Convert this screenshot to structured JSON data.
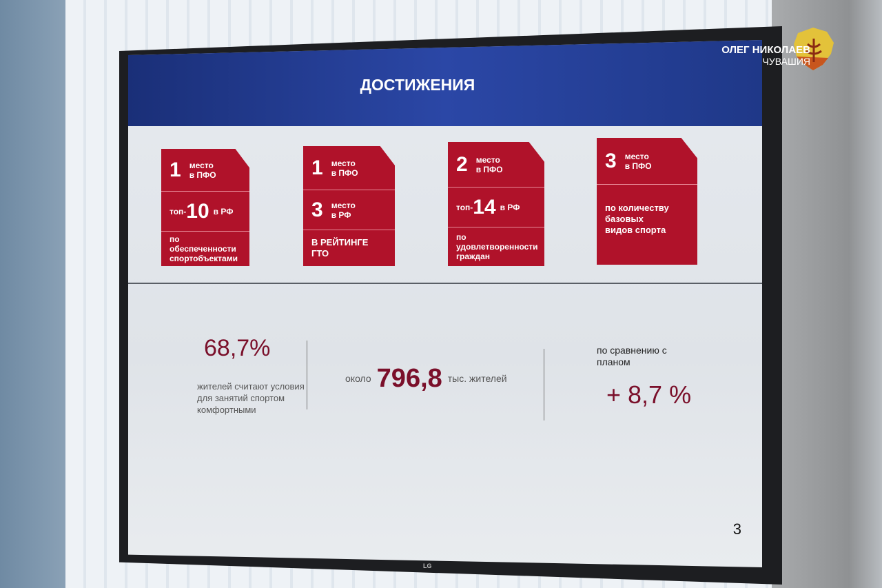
{
  "slide": {
    "title": "ДОСТИЖЕНИЯ",
    "page_number": "3",
    "cards": [
      {
        "rows": [
          {
            "big": "1",
            "text": "место в ПФО"
          },
          {
            "prefix": "топ-",
            "big": "10",
            "text": "в РФ"
          },
          {
            "text": "по обеспеченности спортобъектами"
          }
        ]
      },
      {
        "rows": [
          {
            "big": "1",
            "text": "место в ПФО"
          },
          {
            "big": "3",
            "text": "место в РФ"
          },
          {
            "text": "В РЕЙТИНГЕ ГТО"
          }
        ]
      },
      {
        "rows": [
          {
            "big": "2",
            "text": "место в ПФО"
          },
          {
            "prefix": "топ-",
            "big": "14",
            "text": "в РФ"
          },
          {
            "text": "по удовлетворенности граждан"
          }
        ]
      },
      {
        "rows": [
          {
            "big": "3",
            "text": "место в ПФО"
          },
          {
            "text": "по количеству базовых видов спорта"
          }
        ]
      }
    ],
    "stats": {
      "comfort_value": "68,7%",
      "comfort_text": "жителей считают условия для занятий спортом комфортными",
      "residents_prefix": "около",
      "residents_value": "796,8",
      "residents_suffix": "тыс. жителей",
      "plan_text": "по сравнению с планом",
      "plan_value": "+ 8,7 %"
    },
    "accent_color": "#b0122a",
    "header_color": "#2b47a6"
  },
  "tv_brand": "LG",
  "watermark": {
    "name": "ОЛЕГ НИКОЛАЕВ",
    "region": "ЧУВАШИЯ",
    "emblem": "chuvashia-emblem"
  }
}
